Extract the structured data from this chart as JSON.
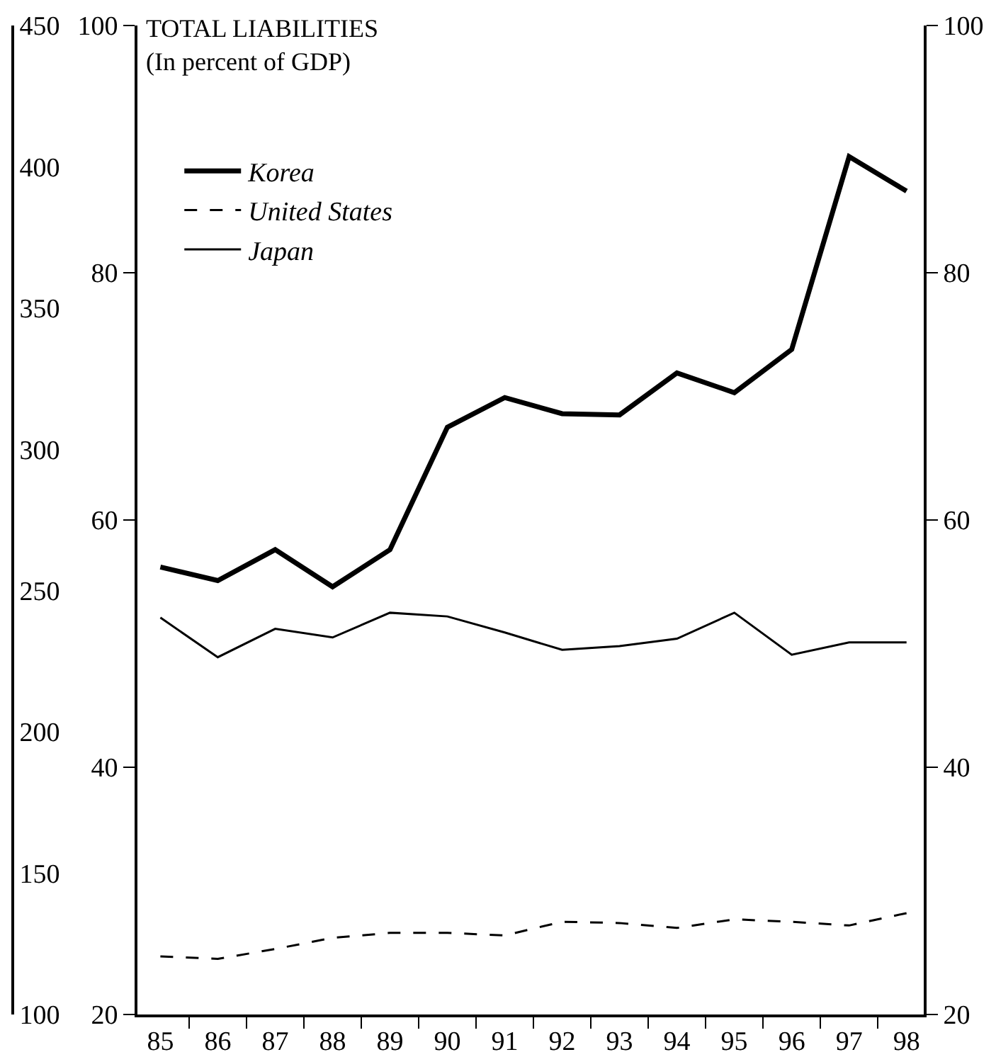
{
  "chart_data": {
    "type": "line",
    "title": "TOTAL LIABILITIES",
    "subtitle": "(In percent of GDP)",
    "categories": [
      "85",
      "86",
      "87",
      "88",
      "89",
      "90",
      "91",
      "92",
      "93",
      "94",
      "95",
      "96",
      "97",
      "98"
    ],
    "series": [
      {
        "name": "Korea",
        "color": "#000000",
        "line_style": "solid",
        "values": [
          56.2,
          55.1,
          57.6,
          54.6,
          57.6,
          67.5,
          69.9,
          68.6,
          68.5,
          71.9,
          70.3,
          73.8,
          89.4,
          86.6
        ]
      },
      {
        "name": "United States",
        "color": "#000000",
        "line_style": "dashed",
        "values": [
          24.7,
          24.5,
          25.3,
          26.2,
          26.6,
          26.6,
          26.4,
          27.5,
          27.4,
          27.0,
          27.7,
          27.5,
          27.2,
          28.2
        ]
      },
      {
        "name": "Japan",
        "color": "#000000",
        "line_style": "solid",
        "values": [
          52.1,
          48.9,
          51.2,
          50.5,
          52.5,
          52.2,
          50.9,
          49.5,
          49.8,
          50.4,
          52.5,
          49.1,
          50.1,
          50.1
        ]
      }
    ],
    "ylim": [
      20,
      100
    ],
    "yticks": [
      20,
      40,
      60,
      80,
      100
    ],
    "y2lim": [
      20,
      100
    ],
    "y2ticks": [
      20,
      40,
      60,
      80,
      100
    ],
    "y3lim": [
      100,
      450
    ],
    "y3ticks": [
      100,
      150,
      200,
      250,
      300,
      350,
      400,
      450
    ],
    "legend": "top left",
    "marker": "none"
  }
}
